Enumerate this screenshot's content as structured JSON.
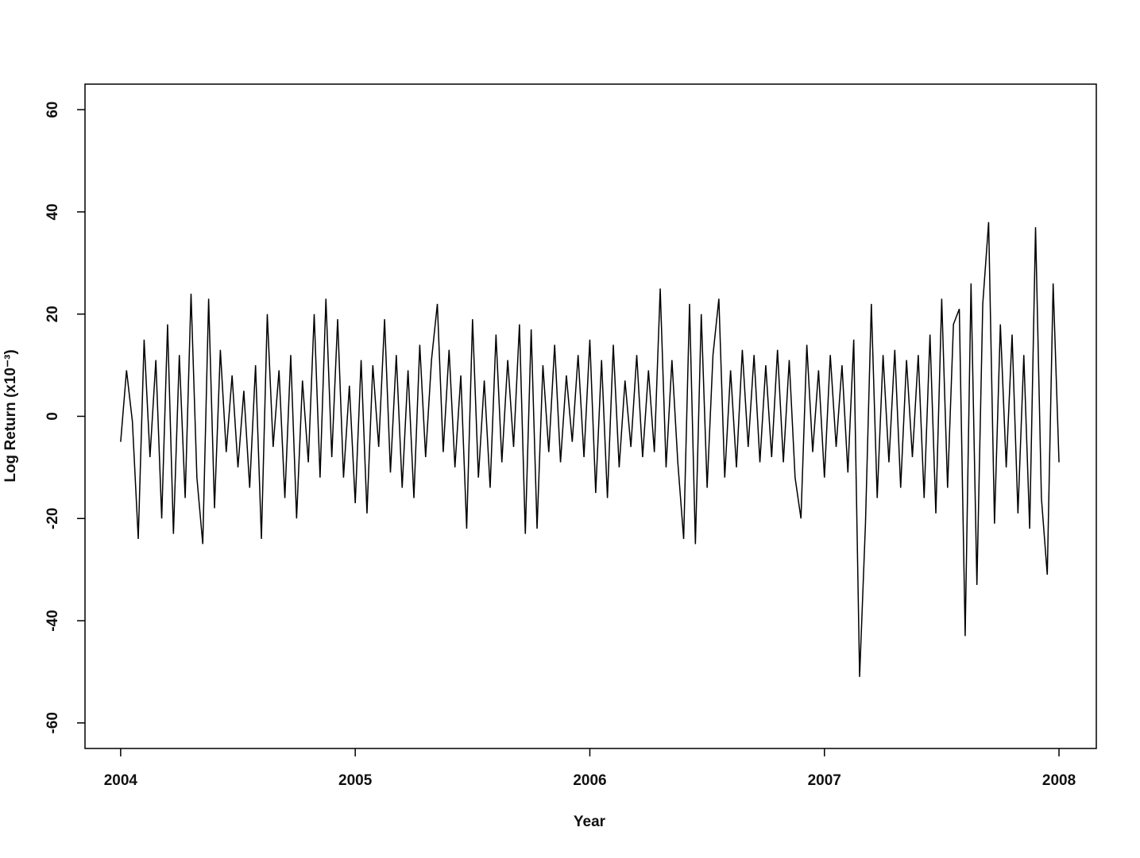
{
  "chart_data": {
    "type": "line",
    "x_label": "Year",
    "y_label": "Log Return (x10⁻³)",
    "xlim": [
      2003.848,
      2008.159
    ],
    "xticks": [
      2004,
      2005,
      2006,
      2007,
      2008
    ],
    "ylim": [
      -65,
      65
    ],
    "yticks": [
      -60,
      -40,
      -20,
      0,
      20,
      40,
      60
    ],
    "x": [
      2004,
      2004.025,
      2004.05,
      2004.075,
      2004.1,
      2004.125,
      2004.15,
      2004.175,
      2004.2,
      2004.225,
      2004.25,
      2004.275,
      2004.3,
      2004.325,
      2004.35,
      2004.375,
      2004.4,
      2004.425,
      2004.45,
      2004.475,
      2004.5,
      2004.525,
      2004.55,
      2004.575,
      2004.6,
      2004.625,
      2004.65,
      2004.675,
      2004.7,
      2004.725,
      2004.75,
      2004.775,
      2004.8,
      2004.825,
      2004.85,
      2004.875,
      2004.9,
      2004.925,
      2004.95,
      2004.975,
      2005,
      2005.025,
      2005.05,
      2005.075,
      2005.1,
      2005.125,
      2005.15,
      2005.175,
      2005.2,
      2005.225,
      2005.25,
      2005.275,
      2005.3,
      2005.325,
      2005.35,
      2005.375,
      2005.4,
      2005.425,
      2005.45,
      2005.475,
      2005.5,
      2005.525,
      2005.55,
      2005.575,
      2005.6,
      2005.625,
      2005.65,
      2005.675,
      2005.7,
      2005.725,
      2005.75,
      2005.775,
      2005.8,
      2005.825,
      2005.85,
      2005.875,
      2005.9,
      2005.925,
      2005.95,
      2005.975,
      2006,
      2006.025,
      2006.05,
      2006.075,
      2006.1,
      2006.125,
      2006.15,
      2006.175,
      2006.2,
      2006.225,
      2006.25,
      2006.275,
      2006.3,
      2006.325,
      2006.35,
      2006.375,
      2006.4,
      2006.425,
      2006.45,
      2006.475,
      2006.5,
      2006.525,
      2006.55,
      2006.575,
      2006.6,
      2006.625,
      2006.65,
      2006.675,
      2006.7,
      2006.725,
      2006.75,
      2006.775,
      2006.8,
      2006.825,
      2006.85,
      2006.875,
      2006.9,
      2006.925,
      2006.95,
      2006.975,
      2007,
      2007.025,
      2007.05,
      2007.075,
      2007.1,
      2007.125,
      2007.15,
      2007.175,
      2007.2,
      2007.225,
      2007.25,
      2007.275,
      2007.3,
      2007.325,
      2007.35,
      2007.375,
      2007.4,
      2007.425,
      2007.45,
      2007.475,
      2007.5,
      2007.525,
      2007.55,
      2007.575,
      2007.6,
      2007.625,
      2007.65,
      2007.675,
      2007.7,
      2007.725,
      2007.75,
      2007.775,
      2007.8,
      2007.825,
      2007.85,
      2007.875,
      2007.9,
      2007.925,
      2007.95,
      2007.975,
      2008
    ],
    "series": [
      {
        "color": "#000000",
        "values": [
          -5,
          9,
          -1,
          -24,
          15,
          -8,
          11,
          -20,
          18,
          -23,
          12,
          -16,
          24,
          -12,
          -25,
          23,
          -18,
          13,
          -7,
          8,
          -10,
          5,
          -14,
          10,
          -24,
          20,
          -6,
          9,
          -16,
          12,
          -20,
          7,
          -9,
          20,
          -12,
          23,
          -8,
          19,
          -12,
          6,
          -17,
          11,
          -19,
          10,
          -6,
          19,
          -11,
          12,
          -14,
          9,
          -16,
          14,
          -8,
          11,
          22,
          -7,
          13,
          -10,
          8,
          -22,
          19,
          -12,
          7,
          -14,
          16,
          -9,
          11,
          -6,
          18,
          -23,
          17,
          -22,
          10,
          -7,
          14,
          -9,
          8,
          -5,
          12,
          -8,
          15,
          -15,
          11,
          -16,
          14,
          -10,
          7,
          -6,
          12,
          -8,
          9,
          -7,
          25,
          -10,
          11,
          -9,
          -24,
          22,
          -25,
          20,
          -14,
          12,
          23,
          -12,
          9,
          -10,
          13,
          -6,
          12,
          -9,
          10,
          -8,
          13,
          -9,
          11,
          -12,
          -20,
          14,
          -7,
          9,
          -12,
          12,
          -6,
          10,
          -11,
          15,
          -51,
          -21,
          22,
          -16,
          12,
          -9,
          13,
          -14,
          11,
          -8,
          12,
          -16,
          16,
          -19,
          23,
          -14,
          18,
          21,
          -43,
          26,
          -33,
          22,
          38,
          -21,
          18,
          -10,
          16,
          -19,
          12,
          -22,
          37,
          -16,
          -31,
          26,
          -9
        ]
      }
    ]
  }
}
